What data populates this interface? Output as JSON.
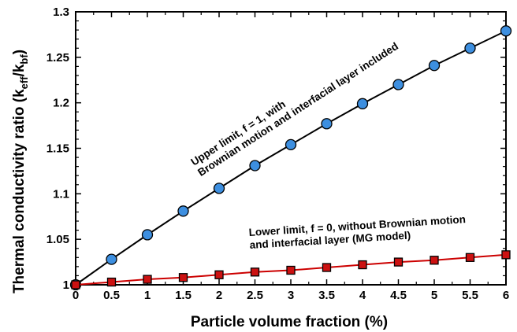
{
  "chart_data": {
    "type": "line",
    "title": "",
    "xlabel": "Particle volume fraction (%)",
    "ylabel_prefix": "Thermal conductivity ratio (k",
    "ylabel_sub1": "eff",
    "ylabel_mid": "/k",
    "ylabel_sub2": "bf",
    "ylabel_suffix": ")",
    "xlim": [
      0,
      6
    ],
    "ylim": [
      1,
      1.3
    ],
    "xticks": [
      "0",
      "0.5",
      "1",
      "1.5",
      "2",
      "2.5",
      "3",
      "3.5",
      "4",
      "4.5",
      "5",
      "5.5",
      "6"
    ],
    "yticks": [
      "1",
      "1.05",
      "1.1",
      "1.15",
      "1.2",
      "1.25",
      "1.3"
    ],
    "grid": false,
    "legend": "none",
    "x": [
      0,
      0.5,
      1,
      1.5,
      2,
      2.5,
      3,
      3.5,
      4,
      4.5,
      5,
      5.5,
      6
    ],
    "series": [
      {
        "marker": "circle",
        "line_color": "#000000",
        "marker_color": "#3d8fe0",
        "values": [
          1.0,
          1.028,
          1.055,
          1.081,
          1.106,
          1.131,
          1.154,
          1.177,
          1.199,
          1.22,
          1.241,
          1.26,
          1.279
        ]
      },
      {
        "marker": "square",
        "line_color": "#cc0000",
        "marker_color": "#cc1111",
        "values": [
          1.0,
          1.003,
          1.006,
          1.008,
          1.011,
          1.014,
          1.016,
          1.019,
          1.022,
          1.025,
          1.027,
          1.03,
          1.033
        ]
      }
    ],
    "annotations": [
      {
        "lines": [
          "Upper limit, f = 1, with",
          "Brownian motion and interfacial layer included"
        ]
      },
      {
        "lines": [
          "Lower limit, f = 0, without Brownian motion",
          "and interfacial layer (MG model)"
        ]
      }
    ]
  }
}
